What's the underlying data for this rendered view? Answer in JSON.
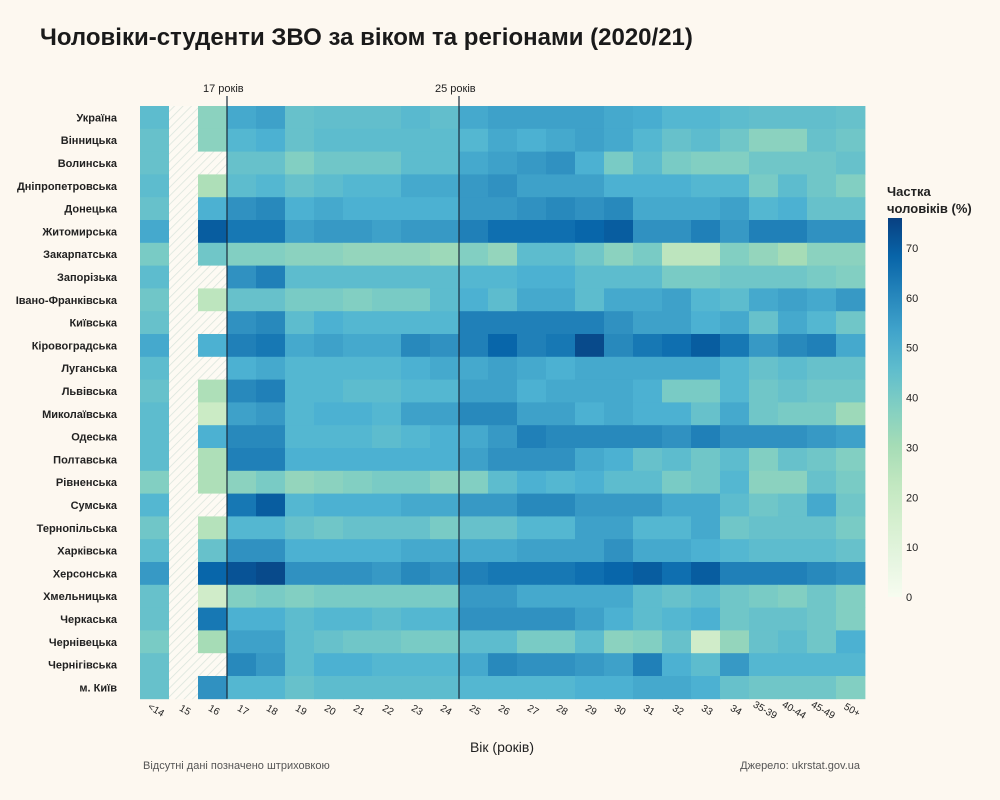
{
  "chart_data": {
    "type": "heatmap",
    "title": "Чоловіки-студенти ЗВО за віком та регіонами (2020/21)",
    "xlabel": "Вік (років)",
    "note": "Відсутні дані позначено штриховкою",
    "source": "Джерело: ukrstat.gov.ua",
    "legend_title_line1": "Частка",
    "legend_title_line2": "чоловіків (%)",
    "legend_ticks": [
      "0",
      "10",
      "20",
      "30",
      "40",
      "50",
      "60",
      "70"
    ],
    "legend_range": [
      0,
      76
    ],
    "reference_lines": [
      {
        "column": "17",
        "label": "17 років"
      },
      {
        "column": "25",
        "label": "25 років"
      }
    ],
    "columns": [
      "<14",
      "15",
      "16",
      "17",
      "18",
      "19",
      "20",
      "21",
      "22",
      "23",
      "24",
      "25",
      "26",
      "27",
      "28",
      "29",
      "30",
      "31",
      "32",
      "33",
      "34",
      "35-39",
      "40-44",
      "45-49",
      "50+"
    ],
    "rows": [
      "Україна",
      "Вінницька",
      "Волинська",
      "Дніпропетровська",
      "Донецька",
      "Житомирська",
      "Закарпатська",
      "Запорізька",
      "Івано-Франківська",
      "Київська",
      "Кіровоградська",
      "Луганська",
      "Львівська",
      "Миколаївська",
      "Одеська",
      "Полтавська",
      "Рівненська",
      "Сумська",
      "Тернопільська",
      "Харківська",
      "Херсонська",
      "Хмельницька",
      "Черкаська",
      "Чернівецька",
      "Чернігівська",
      "м. Київ"
    ],
    "values": [
      [
        46,
        null,
        36,
        52,
        54,
        44,
        45,
        45,
        45,
        47,
        45,
        52,
        54,
        54,
        54,
        54,
        52,
        51,
        48,
        48,
        46,
        45,
        45,
        45,
        44
      ],
      [
        44,
        null,
        36,
        48,
        50,
        44,
        46,
        46,
        46,
        46,
        46,
        48,
        52,
        50,
        52,
        54,
        52,
        48,
        44,
        46,
        42,
        36,
        36,
        44,
        42
      ],
      [
        44,
        null,
        null,
        44,
        44,
        38,
        42,
        42,
        42,
        46,
        46,
        52,
        54,
        56,
        58,
        50,
        40,
        46,
        40,
        38,
        38,
        42,
        42,
        42,
        44
      ],
      [
        46,
        null,
        28,
        46,
        48,
        44,
        46,
        48,
        48,
        52,
        52,
        56,
        58,
        54,
        54,
        54,
        50,
        50,
        50,
        48,
        48,
        40,
        46,
        42,
        38
      ],
      [
        44,
        null,
        50,
        58,
        60,
        50,
        52,
        50,
        50,
        50,
        50,
        56,
        56,
        58,
        60,
        58,
        60,
        52,
        52,
        52,
        54,
        48,
        50,
        44,
        44
      ],
      [
        52,
        null,
        70,
        64,
        64,
        54,
        56,
        56,
        54,
        56,
        56,
        62,
        66,
        66,
        66,
        68,
        70,
        58,
        58,
        62,
        56,
        62,
        62,
        58,
        58
      ],
      [
        40,
        null,
        42,
        38,
        38,
        36,
        36,
        34,
        34,
        34,
        32,
        38,
        34,
        46,
        46,
        42,
        36,
        40,
        24,
        24,
        38,
        34,
        30,
        36,
        36
      ],
      [
        46,
        null,
        null,
        58,
        62,
        46,
        46,
        46,
        46,
        46,
        46,
        48,
        48,
        50,
        50,
        46,
        46,
        46,
        40,
        40,
        42,
        42,
        42,
        40,
        38
      ],
      [
        42,
        null,
        24,
        44,
        44,
        40,
        40,
        38,
        40,
        40,
        46,
        50,
        46,
        52,
        52,
        46,
        52,
        52,
        54,
        48,
        46,
        52,
        54,
        52,
        56
      ],
      [
        44,
        null,
        null,
        58,
        60,
        46,
        50,
        48,
        48,
        48,
        48,
        62,
        62,
        62,
        62,
        62,
        58,
        54,
        54,
        50,
        52,
        44,
        52,
        48,
        42
      ],
      [
        52,
        null,
        50,
        62,
        64,
        52,
        54,
        52,
        52,
        60,
        58,
        62,
        68,
        62,
        64,
        74,
        60,
        64,
        66,
        70,
        64,
        56,
        60,
        62,
        52
      ],
      [
        46,
        null,
        null,
        50,
        52,
        48,
        48,
        48,
        48,
        50,
        52,
        52,
        54,
        52,
        50,
        52,
        52,
        52,
        52,
        52,
        48,
        44,
        46,
        44,
        44
      ],
      [
        44,
        null,
        28,
        60,
        62,
        48,
        48,
        46,
        46,
        48,
        48,
        54,
        54,
        50,
        52,
        52,
        52,
        50,
        40,
        40,
        48,
        42,
        44,
        42,
        42
      ],
      [
        46,
        null,
        20,
        54,
        56,
        48,
        50,
        50,
        48,
        54,
        54,
        60,
        60,
        54,
        54,
        50,
        52,
        50,
        50,
        44,
        52,
        42,
        40,
        40,
        32
      ],
      [
        46,
        null,
        50,
        60,
        60,
        48,
        48,
        48,
        46,
        48,
        50,
        52,
        56,
        62,
        60,
        60,
        60,
        60,
        58,
        62,
        58,
        58,
        58,
        56,
        54
      ],
      [
        46,
        null,
        28,
        62,
        62,
        50,
        50,
        50,
        50,
        50,
        50,
        54,
        58,
        58,
        58,
        52,
        50,
        44,
        46,
        42,
        46,
        38,
        44,
        42,
        38
      ],
      [
        38,
        null,
        28,
        36,
        40,
        34,
        36,
        38,
        40,
        40,
        36,
        38,
        46,
        50,
        48,
        50,
        46,
        46,
        40,
        42,
        48,
        36,
        36,
        44,
        40
      ],
      [
        48,
        null,
        null,
        64,
        70,
        48,
        50,
        50,
        50,
        52,
        52,
        56,
        56,
        60,
        60,
        56,
        56,
        56,
        52,
        52,
        46,
        42,
        44,
        52,
        42
      ],
      [
        42,
        null,
        26,
        48,
        48,
        44,
        42,
        44,
        44,
        44,
        40,
        44,
        44,
        48,
        48,
        54,
        54,
        48,
        48,
        52,
        42,
        44,
        44,
        44,
        40
      ],
      [
        46,
        null,
        44,
        58,
        58,
        50,
        50,
        50,
        50,
        52,
        52,
        52,
        52,
        54,
        54,
        54,
        58,
        52,
        52,
        50,
        48,
        46,
        46,
        46,
        44
      ],
      [
        56,
        null,
        68,
        72,
        74,
        58,
        58,
        58,
        56,
        60,
        58,
        62,
        64,
        64,
        64,
        66,
        68,
        70,
        66,
        70,
        62,
        62,
        62,
        60,
        58
      ],
      [
        44,
        null,
        18,
        38,
        40,
        38,
        40,
        40,
        40,
        40,
        40,
        56,
        56,
        52,
        52,
        52,
        52,
        46,
        44,
        46,
        42,
        40,
        38,
        42,
        38
      ],
      [
        44,
        null,
        64,
        50,
        50,
        46,
        48,
        48,
        46,
        48,
        48,
        58,
        58,
        58,
        58,
        54,
        50,
        46,
        48,
        50,
        42,
        44,
        44,
        42,
        38
      ],
      [
        40,
        null,
        30,
        54,
        54,
        46,
        44,
        42,
        42,
        40,
        40,
        46,
        46,
        40,
        40,
        46,
        36,
        38,
        44,
        18,
        34,
        44,
        46,
        42,
        50
      ],
      [
        44,
        null,
        null,
        60,
        56,
        46,
        50,
        50,
        48,
        48,
        48,
        52,
        60,
        58,
        58,
        56,
        54,
        62,
        50,
        46,
        56,
        48,
        48,
        48,
        48
      ],
      [
        44,
        null,
        58,
        48,
        48,
        44,
        46,
        46,
        46,
        46,
        46,
        48,
        48,
        48,
        48,
        50,
        50,
        52,
        52,
        50,
        44,
        42,
        42,
        42,
        38
      ]
    ]
  }
}
